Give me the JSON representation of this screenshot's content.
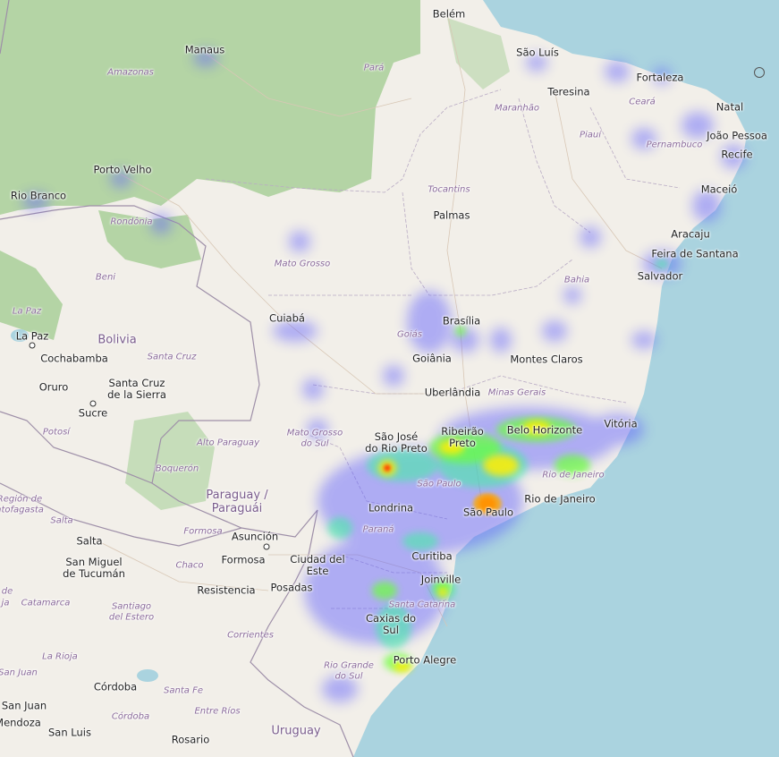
{
  "countries": [
    {
      "id": "bolivia",
      "label": "Bolivia"
    },
    {
      "id": "paraguay",
      "label": "Paraguay /\nParaguái"
    },
    {
      "id": "uruguay",
      "label": "Uruguay"
    }
  ],
  "states": [
    {
      "id": "amazonas",
      "label": "Amazonas"
    },
    {
      "id": "para",
      "label": "Pará"
    },
    {
      "id": "maranhao",
      "label": "Maranhão"
    },
    {
      "id": "ceara",
      "label": "Ceará"
    },
    {
      "id": "piaui",
      "label": "Piauí"
    },
    {
      "id": "pernambuco",
      "label": "Pernambuco"
    },
    {
      "id": "tocantins",
      "label": "Tocantins"
    },
    {
      "id": "rondonia",
      "label": "Rondônia"
    },
    {
      "id": "mato-grosso",
      "label": "Mato Grosso"
    },
    {
      "id": "bahia",
      "label": "Bahia"
    },
    {
      "id": "goias",
      "label": "Goiás"
    },
    {
      "id": "minas-gerais",
      "label": "Minas Gerais"
    },
    {
      "id": "mato-grosso-do-sul",
      "label": "Mato Grosso\ndo Sul"
    },
    {
      "id": "sao-paulo-state",
      "label": "São Paulo"
    },
    {
      "id": "rio-de-janeiro-state",
      "label": "Rio de Janeiro"
    },
    {
      "id": "parana",
      "label": "Paraná"
    },
    {
      "id": "santa-catarina",
      "label": "Santa Catarina"
    },
    {
      "id": "rio-grande-do-sul",
      "label": "Rio Grande\ndo Sul"
    },
    {
      "id": "beni",
      "label": "Beni"
    },
    {
      "id": "la-paz-dept",
      "label": "La Paz"
    },
    {
      "id": "santa-cruz-dept",
      "label": "Santa Cruz"
    },
    {
      "id": "potosi",
      "label": "Potosí"
    },
    {
      "id": "alto-paraguay",
      "label": "Alto Paraguay"
    },
    {
      "id": "boqueron",
      "label": "Boquerón"
    },
    {
      "id": "formosa-prov",
      "label": "Formosa"
    },
    {
      "id": "chaco",
      "label": "Chaco"
    },
    {
      "id": "region-antofagasta",
      "label": "Región de\nntofagasta"
    },
    {
      "id": "salta-prov",
      "label": "Salta"
    },
    {
      "id": "catamarca",
      "label": "Catamarca"
    },
    {
      "id": "santiago-del-estero",
      "label": "Santiago\ndel Estero"
    },
    {
      "id": "corrientes",
      "label": "Corrientes"
    },
    {
      "id": "la-rioja",
      "label": "La Rioja"
    },
    {
      "id": "san-juan-prov",
      "label": "San Juan"
    },
    {
      "id": "santa-fe",
      "label": "Santa Fe"
    },
    {
      "id": "cordoba-prov",
      "label": "Córdoba"
    },
    {
      "id": "entre-rios",
      "label": "Entre Ríos"
    },
    {
      "id": "de-fragment",
      "label": "de"
    },
    {
      "id": "ja-fragment",
      "label": "ja"
    }
  ],
  "cities": [
    {
      "id": "belem",
      "label": "Belém"
    },
    {
      "id": "manaus",
      "label": "Manaus"
    },
    {
      "id": "sao-luis",
      "label": "São Luís"
    },
    {
      "id": "fortaleza",
      "label": "Fortaleza"
    },
    {
      "id": "teresina",
      "label": "Teresina"
    },
    {
      "id": "natal",
      "label": "Natal"
    },
    {
      "id": "joao-pessoa",
      "label": "João Pessoa"
    },
    {
      "id": "recife",
      "label": "Recife"
    },
    {
      "id": "maceio",
      "label": "Maceió"
    },
    {
      "id": "porto-velho",
      "label": "Porto Velho"
    },
    {
      "id": "rio-branco",
      "label": "Rio Branco"
    },
    {
      "id": "palmas",
      "label": "Palmas"
    },
    {
      "id": "aracaju",
      "label": "Aracaju"
    },
    {
      "id": "feira-de-santana",
      "label": "Feira de Santana"
    },
    {
      "id": "salvador",
      "label": "Salvador"
    },
    {
      "id": "cuiaba",
      "label": "Cuiabá"
    },
    {
      "id": "brasilia",
      "label": "Brasília"
    },
    {
      "id": "goiania",
      "label": "Goiânia"
    },
    {
      "id": "montes-claros",
      "label": "Montes Claros"
    },
    {
      "id": "uberlandia",
      "label": "Uberlândia"
    },
    {
      "id": "la-paz",
      "label": "La Paz"
    },
    {
      "id": "cochabamba",
      "label": "Cochabamba"
    },
    {
      "id": "oruro",
      "label": "Oruro"
    },
    {
      "id": "santa-cruz",
      "label": "Santa Cruz\nde la Sierra"
    },
    {
      "id": "sucre",
      "label": "Sucre"
    },
    {
      "id": "vitoria",
      "label": "Vitória"
    },
    {
      "id": "belo-horizonte",
      "label": "Belo Horizonte"
    },
    {
      "id": "ribeirao-preto",
      "label": "Ribeirão\nPreto"
    },
    {
      "id": "sao-jose-rio-preto",
      "label": "São José\ndo Rio Preto"
    },
    {
      "id": "rio-de-janeiro",
      "label": "Rio de Janeiro"
    },
    {
      "id": "sao-paulo",
      "label": "São Paulo"
    },
    {
      "id": "londrina",
      "label": "Londrina"
    },
    {
      "id": "asuncion",
      "label": "Asunción"
    },
    {
      "id": "formosa",
      "label": "Formosa"
    },
    {
      "id": "ciudad-del-este",
      "label": "Ciudad del\nEste"
    },
    {
      "id": "curitiba",
      "label": "Curitiba"
    },
    {
      "id": "joinville",
      "label": "Joinville"
    },
    {
      "id": "salta",
      "label": "Salta"
    },
    {
      "id": "san-miguel-tucuman",
      "label": "San Miguel\nde Tucumán"
    },
    {
      "id": "resistencia",
      "label": "Resistencia"
    },
    {
      "id": "posadas",
      "label": "Posadas"
    },
    {
      "id": "caxias-do-sul",
      "label": "Caxias do\nSul"
    },
    {
      "id": "porto-alegre",
      "label": "Porto Alegre"
    },
    {
      "id": "cordoba",
      "label": "Córdoba"
    },
    {
      "id": "san-juan",
      "label": "San Juan"
    },
    {
      "id": "mendoza",
      "label": "Mendoza"
    },
    {
      "id": "san-luis",
      "label": "San Luis"
    },
    {
      "id": "rosario",
      "label": "Rosario"
    }
  ],
  "colors": {
    "ocean": "#aad3df",
    "land": "#f2efe9",
    "forest": "#add19e",
    "border": "#9e8fa8",
    "heat_low": "#5b5bff",
    "heat_mid": "#3cff3c",
    "heat_high": "#ffee00",
    "heat_peak": "#ff3300"
  }
}
